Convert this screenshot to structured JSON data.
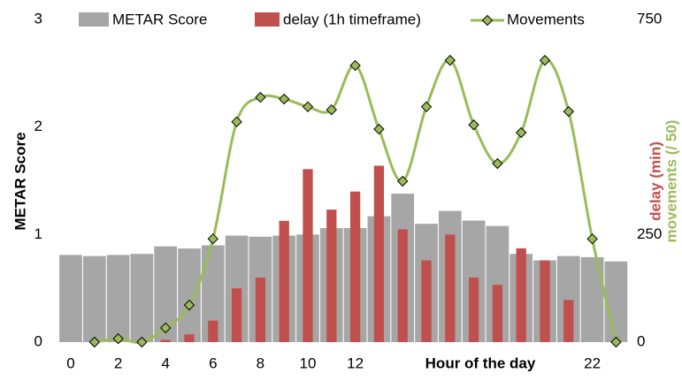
{
  "chart_data": {
    "type": "bar",
    "x_label": "Hour of the day",
    "y_label": "METAR Score",
    "y2_labels": [
      "delay (min)",
      "movements (/ 50)"
    ],
    "x": [
      0,
      1,
      2,
      3,
      4,
      5,
      6,
      7,
      8,
      9,
      10,
      11,
      12,
      13,
      14,
      15,
      16,
      17,
      18,
      19,
      20,
      21,
      22,
      23
    ],
    "xlim": [
      -0.5,
      23.5
    ],
    "xticks": [
      0,
      2,
      4,
      6,
      8,
      10,
      12,
      22
    ],
    "ylim": [
      0,
      3
    ],
    "yticks": [
      0,
      1,
      2,
      3
    ],
    "y2lim": [
      0,
      750
    ],
    "y2ticks": [
      0,
      250,
      750
    ],
    "series": [
      {
        "name": "METAR Score",
        "type": "bar",
        "color": "#a6a6a6",
        "axis": "y",
        "values": [
          0.81,
          0.8,
          0.81,
          0.82,
          0.89,
          0.87,
          0.9,
          0.99,
          0.98,
          0.99,
          1.0,
          1.06,
          1.06,
          1.17,
          1.38,
          1.1,
          1.22,
          1.13,
          1.08,
          0.82,
          0.76,
          0.8,
          0.79,
          0.75
        ]
      },
      {
        "name": "delay (1h timeframe)",
        "type": "bar",
        "color": "#c0504d",
        "axis": "y2",
        "values": [
          0,
          0,
          0,
          0,
          5,
          18,
          50,
          125,
          150,
          282,
          402,
          308,
          350,
          410,
          262,
          190,
          250,
          150,
          133,
          218,
          190,
          98,
          0,
          0
        ]
      },
      {
        "name": "Movements",
        "type": "line",
        "color": "#9bbb59",
        "axis": "y2",
        "values": [
          null,
          0,
          8,
          0,
          33,
          86,
          240,
          512,
          569,
          565,
          547,
          540,
          643,
          495,
          374,
          547,
          655,
          505,
          415,
          487,
          655,
          536,
          240,
          0
        ]
      }
    ]
  }
}
